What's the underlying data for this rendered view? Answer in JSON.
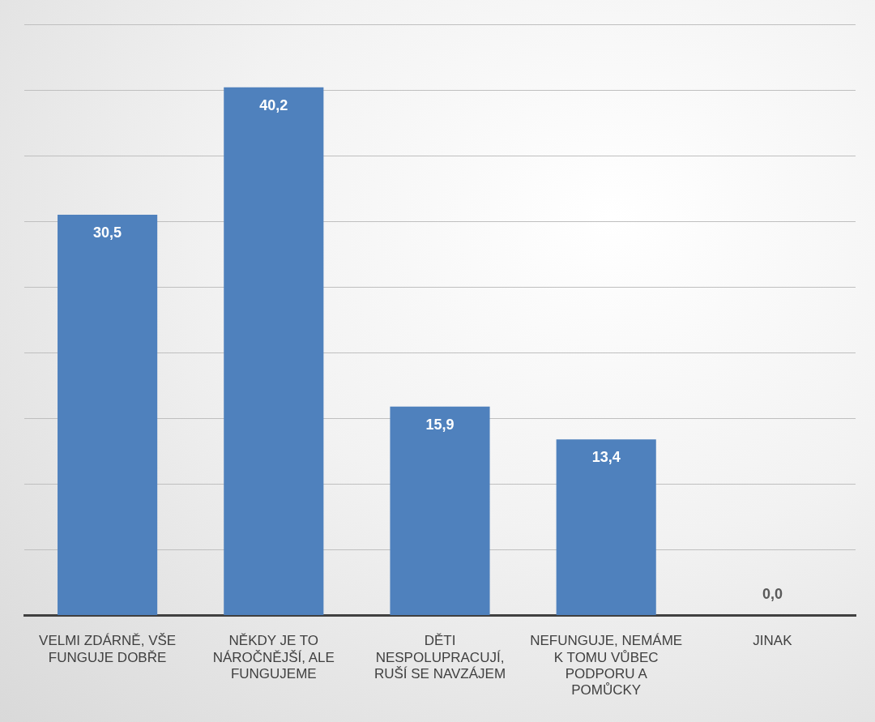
{
  "chart_data": {
    "type": "bar",
    "categories": [
      "VELMI ZDÁRNĚ, VŠE FUNGUJE DOBŘE",
      "NĚKDY JE TO NÁROČNĚJŠÍ, ALE FUNGUJEME",
      "DĚTI NESPOLUPRACUJÍ, RUŠÍ SE NAVZÁJEM",
      "NEFUNGUJE, NEMÁME K TOMU VŮBEC PODPORU A POMŮCKY",
      "JINAK"
    ],
    "values": [
      30.5,
      40.2,
      15.9,
      13.4,
      0.0
    ],
    "value_labels": [
      "30,5",
      "40,2",
      "15,9",
      "13,4",
      "0,0"
    ],
    "color": "#4f81bd",
    "ylim": [
      0,
      45
    ],
    "yticks": [
      {
        "value": 0,
        "label": null
      },
      {
        "value": 5,
        "label": null
      },
      {
        "value": 10,
        "label": null
      },
      {
        "value": 15,
        "label": null
      },
      {
        "value": 20,
        "label": null
      },
      {
        "value": 25,
        "label": null
      },
      {
        "value": 30,
        "label": null
      },
      {
        "value": 35,
        "label": null
      },
      {
        "value": 40,
        "label": null
      },
      {
        "value": 45,
        "label": null
      }
    ],
    "grid": "y",
    "tick_labels": "x",
    "legend": false
  }
}
